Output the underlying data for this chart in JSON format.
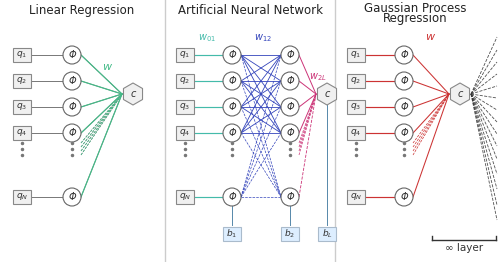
{
  "title_lr": "Linear Regression",
  "title_ann": "Artificial Neural Network",
  "title_gpr_1": "Gaussian Process",
  "title_gpr_2": "Regression",
  "bg_color": "#ffffff",
  "lr_w_color": "#44bb88",
  "ann_w01_color": "#44bbaa",
  "ann_w12_color": "#3344bb",
  "ann_w2c_color": "#cc3377",
  "gpr_w_color": "#cc3333",
  "gpr_dashed_color": "#333333",
  "node_ec": "#666666",
  "node_fc": "#ffffff",
  "box_ec": "#888888",
  "box_fc": "#f0f0f0",
  "hex_ec": "#888888",
  "hex_fc": "#f0f0f0",
  "bias_ec": "#aabbcc",
  "bias_fc": "#ddeeff",
  "gray_line": "#777777",
  "dot_color": "#777777",
  "divider_color": "#cccccc"
}
